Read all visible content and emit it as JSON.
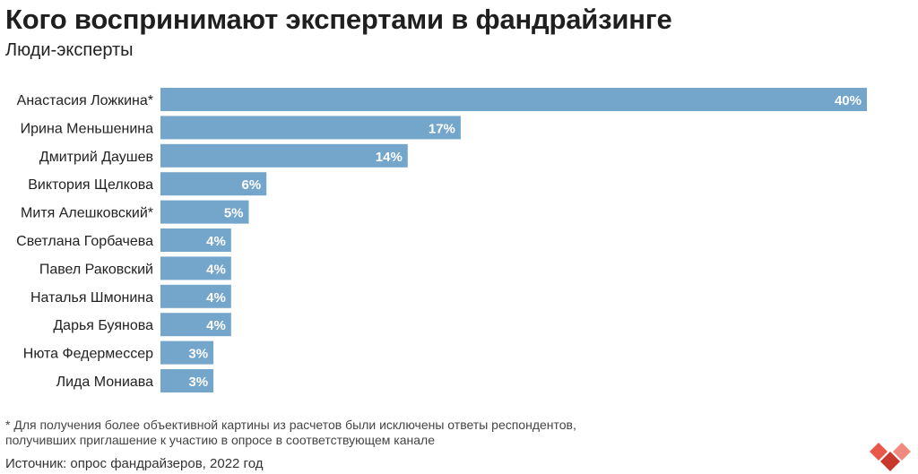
{
  "header": {
    "title": "Кого воспринимают экспертами в фандрайзинге",
    "subtitle": "Люди-эксперты"
  },
  "chart_data": {
    "type": "bar",
    "orientation": "horizontal",
    "categories": [
      "Анастасия Ложкина*",
      "Ирина Меньшенина",
      "Дмитрий Даушев",
      "Виктория Щелкова",
      "Митя Алешковский*",
      "Светлана Горбачева",
      "Павел Раковский",
      "Наталья Шмонина",
      "Дарья Буянова",
      "Нюта Федермессер",
      "Лида Мониава"
    ],
    "values": [
      40,
      17,
      14,
      6,
      5,
      4,
      4,
      4,
      4,
      3,
      3
    ],
    "value_labels": [
      "40%",
      "17%",
      "14%",
      "6%",
      "5%",
      "4%",
      "4%",
      "4%",
      "4%",
      "3%",
      "3%"
    ],
    "unit": "%",
    "xlim": [
      0,
      40
    ],
    "bar_color": "#74a6cc",
    "grid": false,
    "legend": "none"
  },
  "footer": {
    "footnote": "* Для получения более объективной картины из расчетов были исключены ответы респондентов, получивших приглашение к участию в опросе в соответствующем канале",
    "source": "Источник: опрос фандрайзеров, 2022 год"
  },
  "logo": {
    "icon": "heart-logo-icon",
    "colors": [
      "#e8584a",
      "#f08a7e",
      "#c9382c"
    ]
  }
}
